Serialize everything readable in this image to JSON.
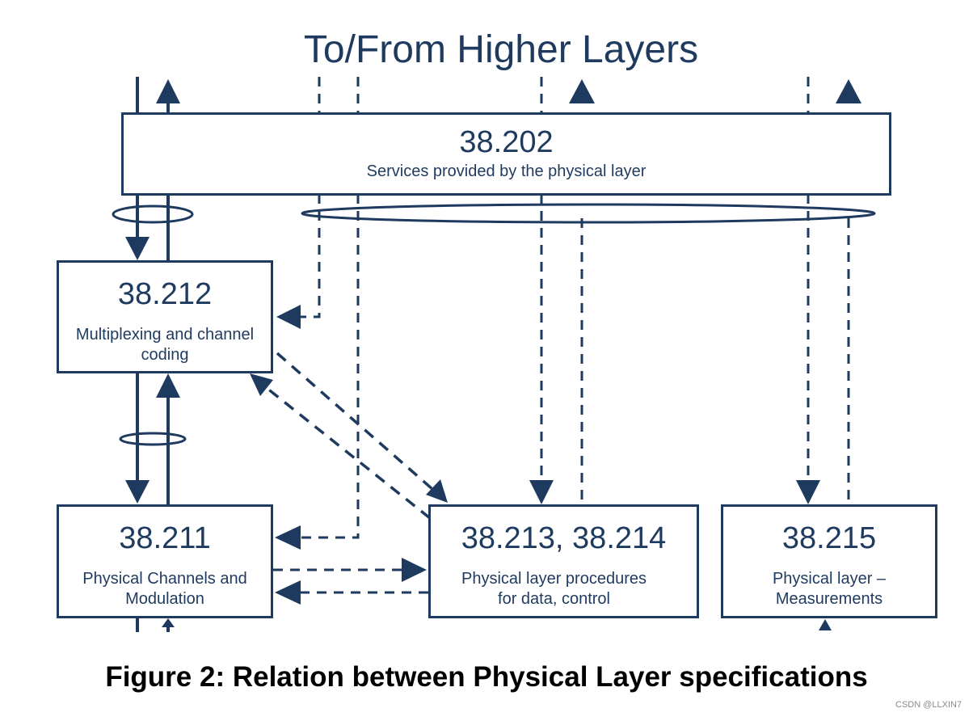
{
  "header": {
    "title": "To/From Higher Layers"
  },
  "boxes": {
    "b202": {
      "number": "38.202",
      "desc": "Services provided by the physical layer"
    },
    "b212": {
      "number": "38.212",
      "desc_line1": "Multiplexing and channel",
      "desc_line2": "coding"
    },
    "b211": {
      "number": "38.211",
      "desc_line1": "Physical Channels and",
      "desc_line2": "Modulation"
    },
    "b213": {
      "number": "38.213, 38.214",
      "desc_line1": "Physical layer procedures",
      "desc_line2": "for data, control"
    },
    "b215": {
      "number": "38.215",
      "desc_line1": "Physical layer –",
      "desc_line2": "Measurements"
    }
  },
  "caption": "Figure 2: Relation between Physical Layer specifications",
  "watermark": "CSDN @LLXIN7",
  "colors": {
    "line": "#1f3a5f",
    "caption": "#000000"
  }
}
